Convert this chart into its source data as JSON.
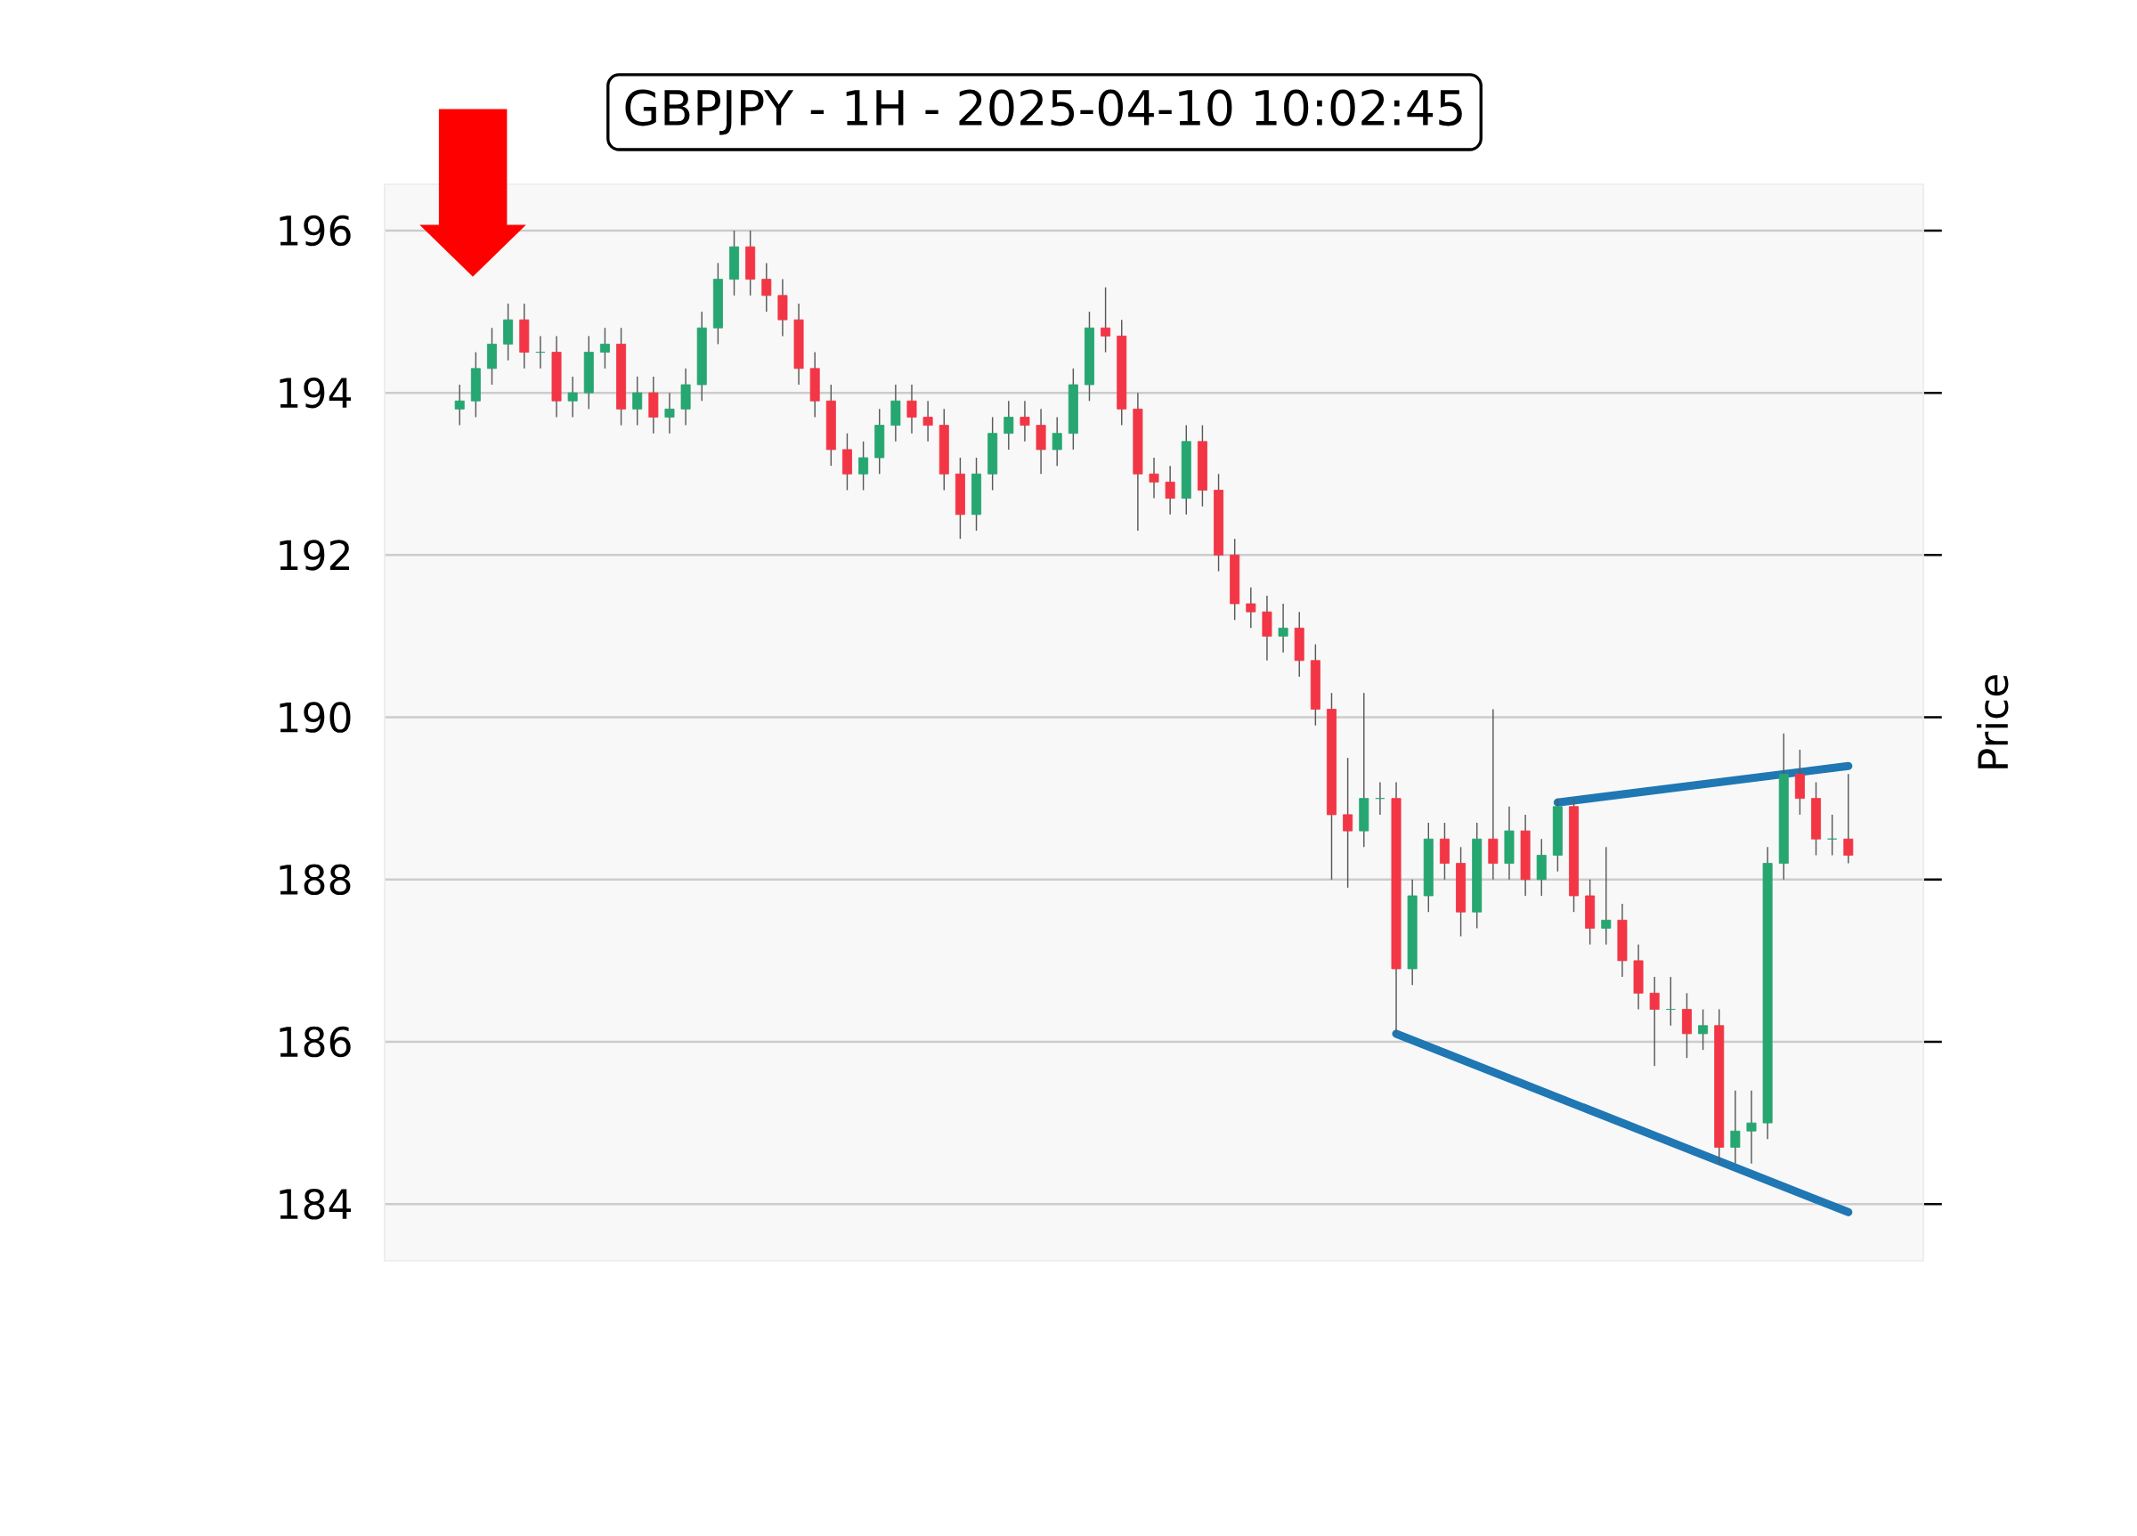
{
  "chart_data": {
    "type": "candlestick",
    "title": "GBPJPY - 1H - 2025-04-10 10:02:45",
    "ylabel": "Price",
    "ylim": [
      183.3,
      196.57
    ],
    "yticks": [
      184,
      186,
      188,
      190,
      192,
      194,
      196
    ],
    "grid": "y",
    "categories": [
      null,
      null,
      null,
      null,
      null,
      null,
      null,
      null,
      null,
      null,
      null,
      null,
      null,
      null,
      null,
      null,
      null,
      null,
      null,
      null,
      null,
      null,
      null,
      null,
      null,
      null,
      null,
      null,
      null,
      null,
      null,
      null,
      null,
      null,
      null,
      null,
      null,
      null,
      null,
      null,
      null,
      null,
      null,
      null,
      null,
      null,
      null,
      null,
      null,
      null,
      null,
      null,
      null,
      null,
      null,
      null,
      null,
      null,
      null,
      null,
      null,
      null,
      null,
      null,
      null,
      null,
      null,
      null,
      null,
      null,
      null,
      null,
      null,
      null,
      null,
      null,
      null,
      null,
      null,
      null,
      null,
      null,
      null,
      null,
      null,
      null,
      null
    ],
    "ohlc": [
      [
        193.8,
        194.1,
        193.6,
        193.9
      ],
      [
        193.9,
        194.5,
        193.7,
        194.3
      ],
      [
        194.3,
        194.8,
        194.1,
        194.6
      ],
      [
        194.6,
        195.1,
        194.4,
        194.9
      ],
      [
        194.9,
        195.1,
        194.3,
        194.5
      ],
      [
        194.5,
        194.7,
        194.3,
        194.5
      ],
      [
        194.5,
        194.7,
        193.7,
        193.9
      ],
      [
        193.9,
        194.2,
        193.7,
        194.0
      ],
      [
        194.0,
        194.7,
        193.8,
        194.5
      ],
      [
        194.5,
        194.8,
        194.3,
        194.6
      ],
      [
        194.6,
        194.8,
        193.6,
        193.8
      ],
      [
        193.8,
        194.2,
        193.6,
        194.0
      ],
      [
        194.0,
        194.2,
        193.5,
        193.7
      ],
      [
        193.7,
        194.0,
        193.5,
        193.8
      ],
      [
        193.8,
        194.3,
        193.6,
        194.1
      ],
      [
        194.1,
        195.0,
        193.9,
        194.8
      ],
      [
        194.8,
        195.6,
        194.6,
        195.4
      ],
      [
        195.4,
        196.0,
        195.2,
        195.8
      ],
      [
        195.8,
        196.0,
        195.2,
        195.4
      ],
      [
        195.4,
        195.6,
        195.0,
        195.2
      ],
      [
        195.2,
        195.4,
        194.7,
        194.9
      ],
      [
        194.9,
        195.1,
        194.1,
        194.3
      ],
      [
        194.3,
        194.5,
        193.7,
        193.9
      ],
      [
        193.9,
        194.1,
        193.1,
        193.3
      ],
      [
        193.3,
        193.5,
        192.8,
        193.0
      ],
      [
        193.0,
        193.4,
        192.8,
        193.2
      ],
      [
        193.2,
        193.8,
        193.0,
        193.6
      ],
      [
        193.6,
        194.1,
        193.4,
        193.9
      ],
      [
        193.9,
        194.1,
        193.5,
        193.7
      ],
      [
        193.7,
        193.9,
        193.4,
        193.6
      ],
      [
        193.6,
        193.8,
        192.8,
        193.0
      ],
      [
        193.0,
        193.2,
        192.2,
        192.5
      ],
      [
        192.5,
        193.2,
        192.3,
        193.0
      ],
      [
        193.0,
        193.7,
        192.8,
        193.5
      ],
      [
        193.5,
        193.9,
        193.3,
        193.7
      ],
      [
        193.7,
        193.9,
        193.4,
        193.6
      ],
      [
        193.6,
        193.8,
        193.0,
        193.3
      ],
      [
        193.3,
        193.7,
        193.1,
        193.5
      ],
      [
        193.5,
        194.3,
        193.3,
        194.1
      ],
      [
        194.1,
        195.0,
        193.9,
        194.8
      ],
      [
        194.8,
        195.3,
        194.5,
        194.7
      ],
      [
        194.7,
        194.9,
        193.6,
        193.8
      ],
      [
        193.8,
        194.0,
        192.3,
        193.0
      ],
      [
        193.0,
        193.2,
        192.7,
        192.9
      ],
      [
        192.9,
        193.1,
        192.5,
        192.7
      ],
      [
        192.7,
        193.6,
        192.5,
        193.4
      ],
      [
        193.4,
        193.6,
        192.6,
        192.8
      ],
      [
        192.8,
        193.0,
        191.8,
        192.0
      ],
      [
        192.0,
        192.2,
        191.2,
        191.4
      ],
      [
        191.4,
        191.6,
        191.1,
        191.3
      ],
      [
        191.3,
        191.5,
        190.7,
        191.0
      ],
      [
        191.0,
        191.4,
        190.8,
        191.1
      ],
      [
        191.1,
        191.3,
        190.5,
        190.7
      ],
      [
        190.7,
        190.9,
        189.9,
        190.1
      ],
      [
        190.1,
        190.3,
        188.0,
        188.8
      ],
      [
        188.8,
        189.5,
        187.9,
        188.6
      ],
      [
        188.6,
        190.3,
        188.4,
        189.0
      ],
      [
        189.0,
        189.2,
        188.8,
        189.0
      ],
      [
        189.0,
        189.2,
        186.1,
        186.9
      ],
      [
        186.9,
        188.0,
        186.7,
        187.8
      ],
      [
        187.8,
        188.7,
        187.6,
        188.5
      ],
      [
        188.5,
        188.7,
        188.0,
        188.2
      ],
      [
        188.2,
        188.4,
        187.3,
        187.6
      ],
      [
        187.6,
        188.7,
        187.4,
        188.5
      ],
      [
        188.5,
        190.1,
        188.0,
        188.2
      ],
      [
        188.2,
        188.9,
        188.0,
        188.6
      ],
      [
        188.6,
        188.8,
        187.8,
        188.0
      ],
      [
        188.0,
        188.5,
        187.8,
        188.3
      ],
      [
        188.3,
        189.0,
        188.1,
        188.9
      ],
      [
        188.9,
        189.0,
        187.6,
        187.8
      ],
      [
        187.8,
        188.0,
        187.2,
        187.4
      ],
      [
        187.4,
        188.4,
        187.2,
        187.5
      ],
      [
        187.5,
        187.7,
        186.8,
        187.0
      ],
      [
        187.0,
        187.2,
        186.4,
        186.6
      ],
      [
        186.6,
        186.8,
        185.7,
        186.4
      ],
      [
        186.4,
        186.8,
        186.2,
        186.4
      ],
      [
        186.4,
        186.6,
        185.8,
        186.1
      ],
      [
        186.1,
        186.4,
        185.9,
        186.2
      ],
      [
        186.2,
        186.4,
        184.5,
        184.7
      ],
      [
        184.7,
        185.4,
        184.5,
        184.9
      ],
      [
        184.9,
        185.4,
        184.5,
        185.0
      ],
      [
        185.0,
        188.4,
        184.8,
        188.2
      ],
      [
        188.2,
        189.8,
        188.0,
        189.3
      ],
      [
        189.3,
        189.6,
        188.8,
        189.0
      ],
      [
        189.0,
        189.2,
        188.3,
        188.5
      ],
      [
        188.5,
        188.8,
        188.3,
        188.5
      ],
      [
        188.5,
        189.3,
        188.2,
        188.3
      ]
    ],
    "series": [
      {
        "type": "line",
        "color": "#1f77b4",
        "values": [
          null,
          null,
          null,
          null,
          null,
          null,
          null,
          null,
          null,
          null,
          null,
          null,
          null,
          null,
          null,
          null,
          null,
          null,
          null,
          null,
          null,
          null,
          null,
          null,
          null,
          null,
          null,
          null,
          null,
          null,
          null,
          null,
          null,
          null,
          null,
          null,
          null,
          null,
          null,
          null,
          null,
          null,
          null,
          null,
          null,
          null,
          null,
          null,
          null,
          null,
          null,
          null,
          null,
          null,
          null,
          null,
          null,
          null,
          186.1,
          null,
          null,
          null,
          null,
          null,
          null,
          null,
          null,
          null,
          null,
          null,
          null,
          null,
          null,
          null,
          null,
          null,
          null,
          null,
          null,
          null,
          null,
          null,
          null,
          null,
          null,
          null,
          183.9
        ]
      },
      {
        "type": "line",
        "color": "#1f77b4",
        "values": [
          null,
          null,
          null,
          null,
          null,
          null,
          null,
          null,
          null,
          null,
          null,
          null,
          null,
          null,
          null,
          null,
          null,
          null,
          null,
          null,
          null,
          null,
          null,
          null,
          null,
          null,
          null,
          null,
          null,
          null,
          null,
          null,
          null,
          null,
          null,
          null,
          null,
          null,
          null,
          null,
          null,
          null,
          null,
          null,
          null,
          null,
          null,
          null,
          null,
          null,
          null,
          null,
          null,
          null,
          null,
          null,
          null,
          null,
          null,
          null,
          null,
          null,
          null,
          null,
          null,
          null,
          null,
          null,
          188.95,
          null,
          null,
          null,
          null,
          null,
          null,
          null,
          null,
          null,
          null,
          null,
          null,
          null,
          null,
          null,
          null,
          null,
          189.4
        ]
      }
    ]
  }
}
